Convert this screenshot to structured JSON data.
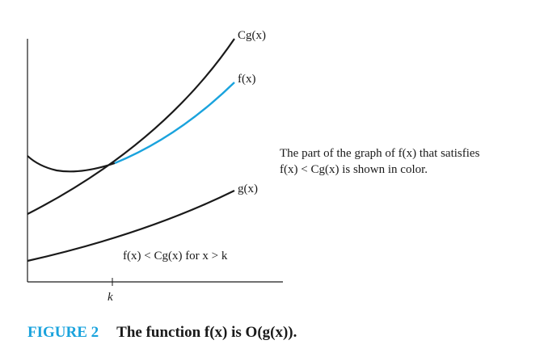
{
  "diagram": {
    "curve_labels": {
      "cg": "Cg(x)",
      "f": "f(x)",
      "g": "g(x)"
    },
    "axis_tick_label": "k",
    "inequality_label": "f(x) < Cg(x) for x > k",
    "note_line1": "The part of the graph of f(x) that satisfies",
    "note_line2": "f(x) < Cg(x) is shown in color.",
    "colors": {
      "highlight": "#1aa3dd",
      "curve": "#1a1a1a"
    }
  },
  "caption": {
    "label": "FIGURE 2",
    "text": "The function f(x) is O(g(x))."
  }
}
